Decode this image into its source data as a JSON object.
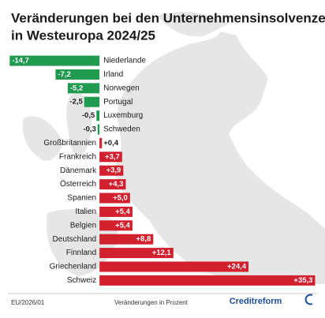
{
  "chart_data": {
    "type": "bar",
    "orientation": "horizontal",
    "title": [
      "Veränderungen bei den Unternehmensinsolvenzen",
      "in Westeuropa 2024/25"
    ],
    "categories": [
      "Niederlande",
      "Irland",
      "Norwegen",
      "Portugal",
      "Luxemburg",
      "Schweden",
      "Großbritannien",
      "Frankreich",
      "Dänemark",
      "Österreich",
      "Spanien",
      "Italien",
      "Belgien",
      "Deutschland",
      "Finnland",
      "Griechenland",
      "Schweiz"
    ],
    "values": [
      -14.7,
      -7.2,
      -5.2,
      -2.5,
      -0.5,
      -0.3,
      0.4,
      3.7,
      3.9,
      4.3,
      5.0,
      5.4,
      5.4,
      8.8,
      12.1,
      24.4,
      35.3
    ],
    "value_labels": [
      "-14,7",
      "-7,2",
      "-5,2",
      "-2,5",
      "-0,5",
      "-0,3",
      "+0,4",
      "+3,7",
      "+3,9",
      "+4,3",
      "+5,0",
      "+5,4",
      "+5,4",
      "+8,8",
      "+12,1",
      "+24,4",
      "+35,3"
    ],
    "negative_color": "#1f9a4f",
    "positive_color": "#d2202f",
    "xlim": [
      -15,
      35.5
    ],
    "source": "EU/2026/01",
    "unit_note": "Veränderungen in Prozent",
    "brand": "Creditreform"
  }
}
